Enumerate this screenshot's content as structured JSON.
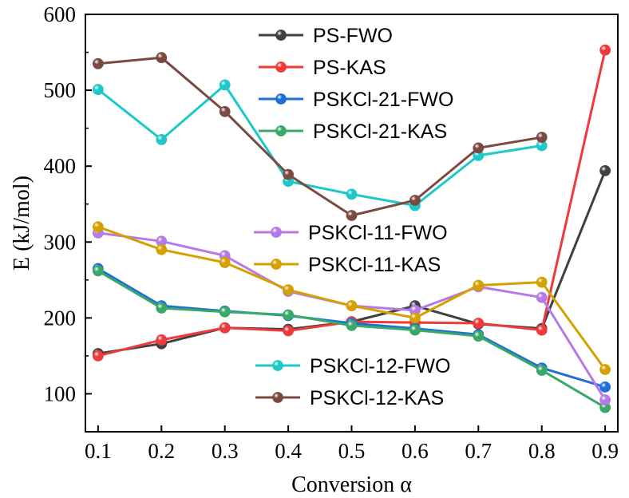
{
  "chart_data": {
    "type": "line",
    "title": "",
    "xlabel": "Conversion α",
    "ylabel": "E (kJ/mol)",
    "x": [
      0.1,
      0.2,
      0.3,
      0.4,
      0.5,
      0.6,
      0.7,
      0.8,
      0.9
    ],
    "x_tick_labels": [
      "0.1",
      "0.2",
      "0.3",
      "0.4",
      "0.5",
      "0.6",
      "0.7",
      "0.8",
      "0.9"
    ],
    "y_ticks": [
      100,
      200,
      300,
      400,
      500,
      600
    ],
    "y_tick_labels": [
      "100",
      "200",
      "300",
      "400",
      "500",
      "600"
    ],
    "xlim": [
      0.08,
      0.92
    ],
    "ylim": [
      50,
      600
    ],
    "grid": false,
    "series": [
      {
        "name": "PS-FWO",
        "color": "#404040",
        "values": [
          153,
          166,
          187,
          185,
          195,
          216,
          192,
          186,
          394
        ]
      },
      {
        "name": "PS-KAS",
        "color": "#ee3a3a",
        "values": [
          150,
          171,
          187,
          183,
          195,
          194,
          193,
          184,
          553
        ]
      },
      {
        "name": "PSKCl-21-FWO",
        "color": "#1e6fd9",
        "values": [
          265,
          216,
          209,
          203,
          193,
          186,
          178,
          134,
          109
        ]
      },
      {
        "name": "PSKCl-21-KAS",
        "color": "#3aa868",
        "values": [
          262,
          213,
          208,
          204,
          190,
          184,
          176,
          131,
          82
        ]
      },
      {
        "name": "PSKCl-11-FWO",
        "color": "#b57ae6",
        "values": [
          312,
          301,
          282,
          235,
          216,
          210,
          241,
          227,
          92
        ]
      },
      {
        "name": "PSKCl-11-KAS",
        "color": "#d4a100",
        "values": [
          320,
          290,
          273,
          237,
          216,
          200,
          243,
          247,
          132
        ]
      },
      {
        "name": "PSKCl-12-FWO",
        "color": "#1cc8c8",
        "values": [
          501,
          435,
          507,
          380,
          363,
          348,
          414,
          427,
          null
        ]
      },
      {
        "name": "PSKCl-12-KAS",
        "color": "#7a4a42",
        "values": [
          535,
          543,
          472,
          389,
          335,
          355,
          424,
          438,
          null
        ]
      }
    ],
    "legends": [
      {
        "placement": "top-center",
        "entries": [
          "PS-FWO",
          "PS-KAS",
          "PSKCl-21-FWO",
          "PSKCl-21-KAS"
        ]
      },
      {
        "placement": "middle-center",
        "entries": [
          "PSKCl-11-FWO",
          "PSKCl-11-KAS"
        ]
      },
      {
        "placement": "bottom-center",
        "entries": [
          "PSKCl-12-FWO",
          "PSKCl-12-KAS"
        ]
      }
    ]
  }
}
